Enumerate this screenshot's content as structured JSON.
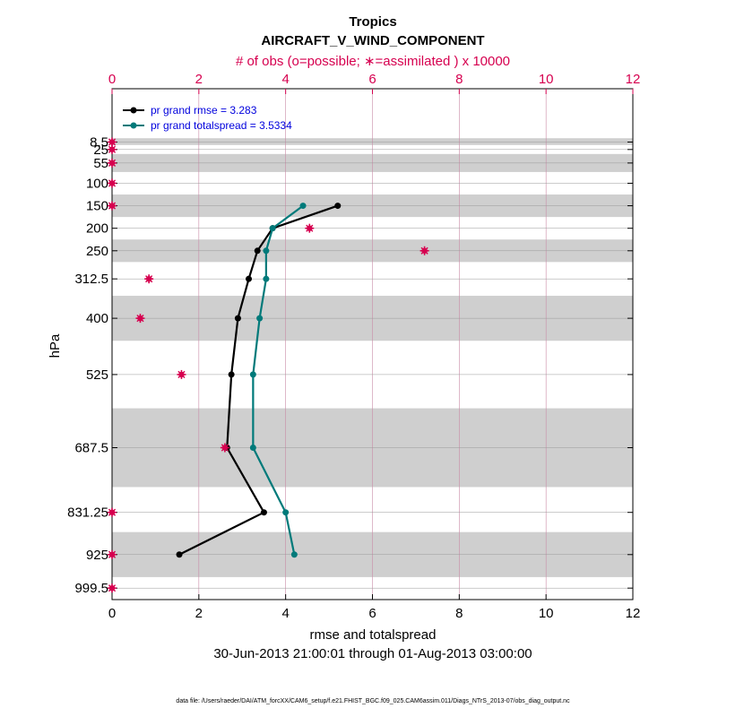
{
  "chart_data": {
    "type": "line",
    "title": "Tropics",
    "subtitle": "AIRCRAFT_V_WIND_COMPONENT",
    "top_axis_label": "# of obs (o=possible; ∗=assimilated ) x 10000",
    "xlabel": "rmse and totalspread",
    "ylabel": "hPa",
    "date_range": "30-Jun-2013 21:00:01 through 01-Aug-2013 03:00:00",
    "footer": "data file: /Users/raeder/DAI/ATM_forcXX/CAM6_setup/f.e21.FHIST_BGC.f09_025.CAM6assim.011/Diags_NTrS_2013-07/obs_diag_output.nc",
    "xlim": [
      0,
      12
    ],
    "x_ticks": [
      0,
      2,
      4,
      6,
      8,
      10,
      12
    ],
    "x_tick_labels": [
      "0",
      "2",
      "4",
      "6",
      "8",
      "10",
      "12"
    ],
    "top_ticks": [
      0,
      2,
      4,
      6,
      8,
      10,
      12
    ],
    "top_tick_labels": [
      "0",
      "2",
      "4",
      "6",
      "8",
      "10",
      "12"
    ],
    "ylim": [
      1025,
      -110
    ],
    "levels": [
      8.5,
      25,
      55,
      100,
      150,
      200,
      250,
      312.5,
      400,
      525,
      687.5,
      831.25,
      925,
      999.5
    ],
    "level_labels": [
      "8.5",
      "25",
      "55",
      "100",
      "150",
      "200",
      "250",
      "312.5",
      "400",
      "525",
      "687.5",
      "831.25",
      "925",
      "999.5"
    ],
    "layer_bands": [
      [
        0,
        15
      ],
      [
        35,
        75
      ],
      [
        125,
        175
      ],
      [
        225,
        275
      ],
      [
        350,
        450
      ],
      [
        600,
        775
      ],
      [
        875,
        975
      ]
    ],
    "series": [
      {
        "name": "pr grand rmse = 3.283",
        "color": "#000000",
        "points": [
          [
            5.2,
            150
          ],
          [
            3.7,
            200
          ],
          [
            3.35,
            250
          ],
          [
            3.15,
            312.5
          ],
          [
            2.9,
            400
          ],
          [
            2.75,
            525
          ],
          [
            2.65,
            687.5
          ],
          [
            3.5,
            831.25
          ],
          [
            1.55,
            925
          ]
        ]
      },
      {
        "name": "pr grand totalspread = 3.5334",
        "color": "#007a7a",
        "points": [
          [
            4.4,
            150
          ],
          [
            3.7,
            200
          ],
          [
            3.55,
            250
          ],
          [
            3.55,
            312.5
          ],
          [
            3.4,
            400
          ],
          [
            3.25,
            525
          ],
          [
            3.25,
            687.5
          ],
          [
            4.0,
            831.25
          ],
          [
            4.2,
            925
          ]
        ]
      }
    ],
    "obs_counts": {
      "color": "#d6004f",
      "points": [
        [
          0.0,
          8.5
        ],
        [
          0.0,
          25
        ],
        [
          0.0,
          55
        ],
        [
          0.0,
          100
        ],
        [
          0.0,
          150
        ],
        [
          4.55,
          200
        ],
        [
          7.2,
          250
        ],
        [
          0.85,
          312.5
        ],
        [
          0.65,
          400
        ],
        [
          1.6,
          525
        ],
        [
          2.6,
          687.5
        ],
        [
          0.0,
          831.25
        ],
        [
          0.0,
          925
        ],
        [
          0.0,
          999.5
        ]
      ]
    }
  }
}
